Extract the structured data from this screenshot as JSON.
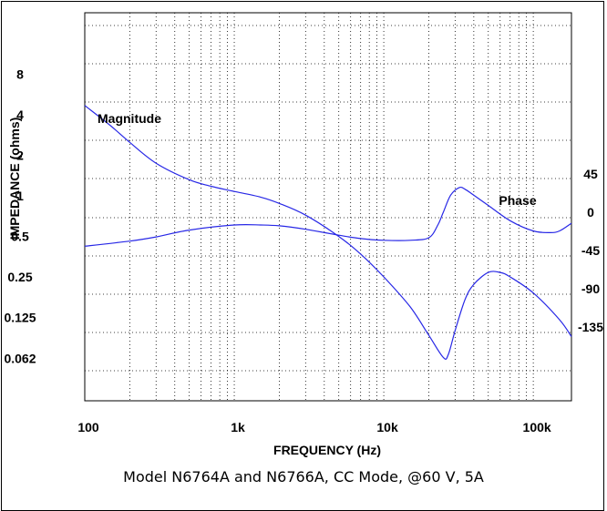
{
  "chart_data": {
    "type": "line",
    "caption": "Model N6764A and N6766A, CC Mode, @60 V, 5A",
    "xlabel": "FREQUENCY (Hz)",
    "ylabel": "IMPEDANCE (ohms)",
    "x_scale": "log",
    "xlim": [
      100,
      180000
    ],
    "x_ticks": [
      100,
      1000,
      10000,
      100000
    ],
    "x_tick_labels": [
      "100",
      "1k",
      "10k",
      "100k"
    ],
    "y_scale": "log",
    "ylim": [
      0.03,
      23
    ],
    "y_ticks": [
      0.062,
      0.125,
      0.25,
      0.5,
      1,
      2,
      4,
      8
    ],
    "y_tick_labels": [
      "0.062",
      "0.125",
      "0.25",
      "0.5",
      "1",
      "2",
      "4",
      "8"
    ],
    "y2_label": "",
    "y2_ticks": [
      45,
      0,
      -45,
      -90,
      -135
    ],
    "y2_tick_labels": [
      "45",
      "0",
      "-45",
      "-90",
      "-135"
    ],
    "grid": true,
    "line_color": "#2727e6",
    "series": [
      {
        "name": "Magnitude",
        "axis": "left",
        "x": [
          100,
          150,
          200,
          300,
          500,
          700,
          1000,
          1500,
          2000,
          3000,
          5000,
          7000,
          10000,
          15000,
          20000,
          25000,
          27000,
          30000,
          35000,
          40000,
          50000,
          60000,
          70000,
          100000,
          150000,
          180000
        ],
        "y": [
          4.7,
          3.3,
          2.5,
          1.75,
          1.32,
          1.18,
          1.08,
          0.98,
          0.88,
          0.72,
          0.5,
          0.37,
          0.25,
          0.15,
          0.092,
          0.063,
          0.066,
          0.1,
          0.17,
          0.22,
          0.27,
          0.27,
          0.25,
          0.19,
          0.12,
          0.09
        ]
      },
      {
        "name": "Phase",
        "axis": "right",
        "x": [
          100,
          200,
          300,
          500,
          1000,
          1500,
          2000,
          3000,
          5000,
          7000,
          10000,
          15000,
          20000,
          23000,
          25000,
          28000,
          32000,
          35000,
          40000,
          50000,
          70000,
          100000,
          130000,
          150000,
          180000
        ],
        "y": [
          -40,
          -34,
          -29,
          -21,
          -15,
          -15,
          -16,
          -20,
          -27,
          -31,
          -33,
          -33,
          -30,
          -15,
          0,
          20,
          29,
          27,
          20,
          8,
          -10,
          -22,
          -24,
          -22,
          -13
        ]
      }
    ]
  }
}
